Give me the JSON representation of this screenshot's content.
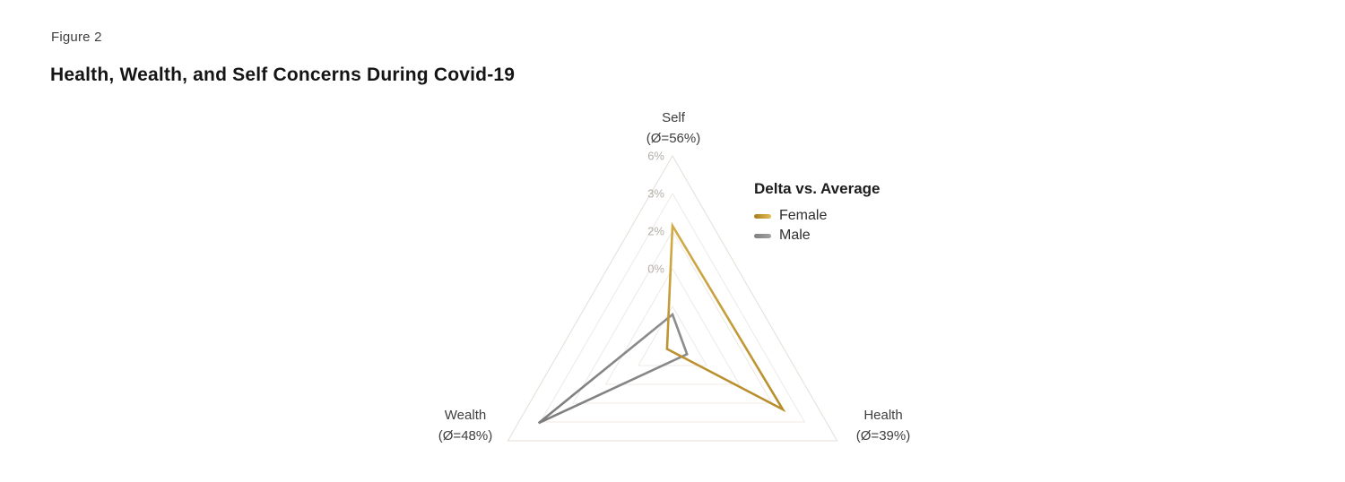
{
  "figure": {
    "eyebrow": "Figure 2",
    "title": "Health, Wealth, and Self Concerns During Covid-19"
  },
  "chart_data": {
    "type": "radar",
    "title": "Health, Wealth, and Self Concerns During Covid-19",
    "legend_title": "Delta vs. Average",
    "legend_position": "right-of-top-axis",
    "grid": true,
    "grid_levels": 5,
    "axes": [
      {
        "label": "Self",
        "average": "(Ø=56%)"
      },
      {
        "label": "Health",
        "average": "(Ø=39%)"
      },
      {
        "label": "Wealth",
        "average": "(Ø=48%)"
      }
    ],
    "tick_labels": [
      "6%",
      "3%",
      "2%",
      "0%"
    ],
    "colors": {
      "grid": "#efe9e3",
      "grid_outer": "#e5ded7",
      "tick_text": "#b4aea7",
      "label_text": "#3e3e3e"
    },
    "series": [
      {
        "name": "Female",
        "color": "#a87c1c",
        "color2": "#e2bd58",
        "values_norm": [
          0.632,
          0.67,
          0.033
        ],
        "approx_delta_pct": [
          2.2,
          2.4,
          -3.8
        ]
      },
      {
        "name": "Male",
        "color": "#7e7e7e",
        "color2": "#a2a2a2",
        "values_norm": [
          0.165,
          0.088,
          0.813
        ],
        "approx_delta_pct": [
          -2.4,
          -3.2,
          3.0
        ]
      }
    ]
  }
}
